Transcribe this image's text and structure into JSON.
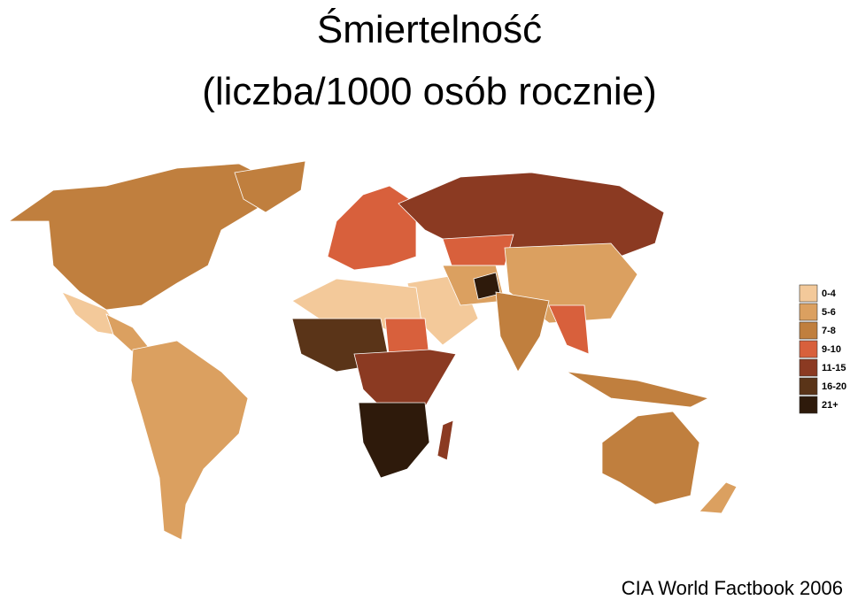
{
  "title": [
    "Śmiertelność",
    "(liczba/1000 osób rocznie)"
  ],
  "legend": {
    "items": [
      {
        "label": "0-4",
        "color": "#f3c99a"
      },
      {
        "label": "5-6",
        "color": "#dba060"
      },
      {
        "label": "7-8",
        "color": "#c07f3e"
      },
      {
        "label": "9-10",
        "color": "#d8603c"
      },
      {
        "label": "11-15",
        "color": "#8b3a22"
      },
      {
        "label": "16-20",
        "color": "#5a3418"
      },
      {
        "label": "21+",
        "color": "#2e1a0b"
      }
    ]
  },
  "source": "CIA World Factbook 2006"
}
